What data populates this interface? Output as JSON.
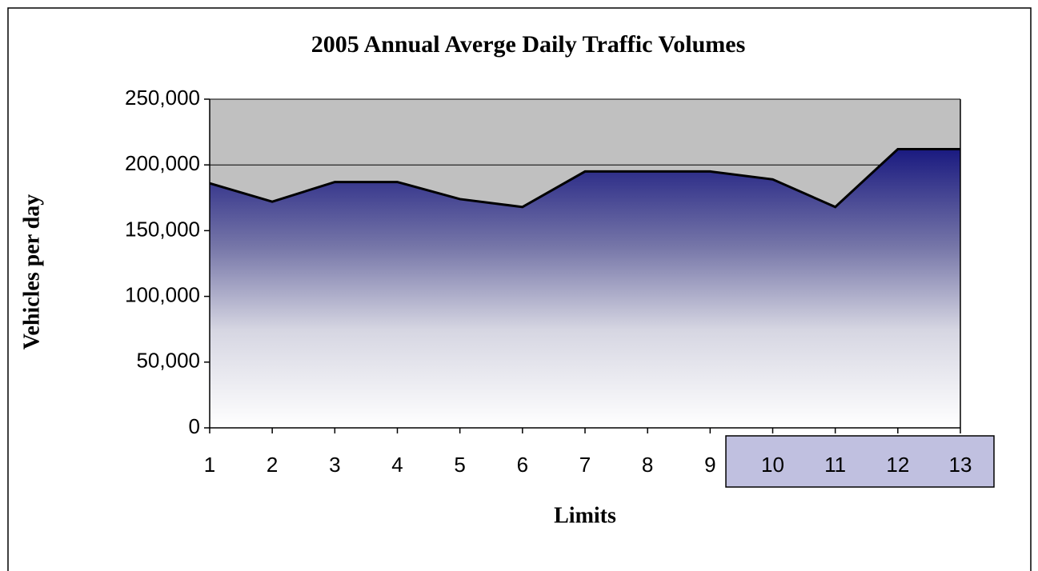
{
  "chart_data": {
    "type": "area",
    "title": "2005 Annual Averge Daily Traffic Volumes",
    "x_label": "Limits",
    "y_label": "Vehicles per day",
    "categories": [
      "1",
      "2",
      "3",
      "4",
      "5",
      "6",
      "7",
      "8",
      "9",
      "10",
      "11",
      "12",
      "13"
    ],
    "values": [
      186000,
      172000,
      187000,
      187000,
      174000,
      168000,
      195000,
      195000,
      195000,
      189000,
      168000,
      212000,
      212000
    ],
    "color": "#1a1a80",
    "ylim": [
      0,
      250000
    ],
    "yticks": [
      0,
      {
        "value": 50000,
        "label": "50,000"
      },
      {
        "value": 100000,
        "label": "100,000"
      },
      {
        "value": 150000,
        "label": "150,000"
      },
      {
        "value": 200000,
        "label": "200,000"
      },
      {
        "value": 250000,
        "label": "250,000"
      }
    ],
    "grid": true
  }
}
